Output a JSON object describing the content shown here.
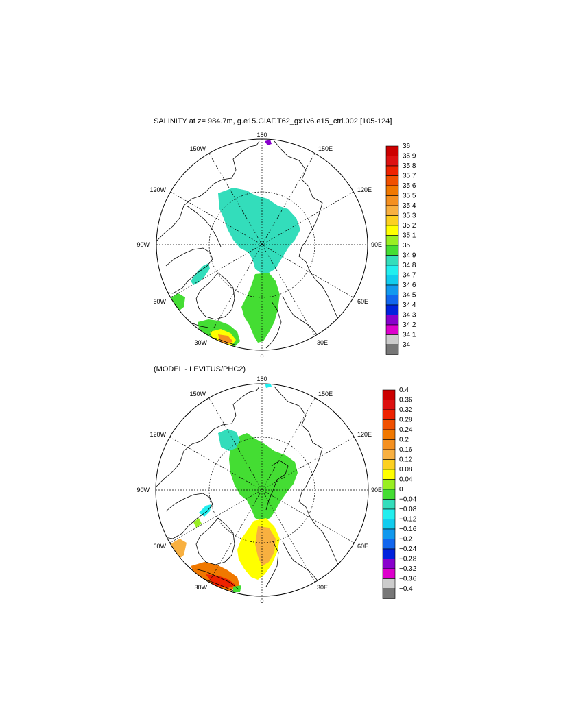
{
  "panels": [
    {
      "title": "SALINITY at z= 984.7m, g.e15.GIAF.T62_gx1v6.e15_ctrl.002 [105-124]",
      "lon_labels": {
        "top": "180",
        "bottom": "0",
        "left": "90W",
        "right": "90E",
        "ul1": "150W",
        "ur1": "150E",
        "ul2": "120W",
        "ur2": "120E",
        "ll1": "60W",
        "lr1": "60E",
        "ll2": "30W",
        "lr2": "30E"
      },
      "colorbar": {
        "labels": [
          "36",
          "35.9",
          "35.8",
          "35.7",
          "35.6",
          "35.5",
          "35.4",
          "35.3",
          "35.2",
          "35.1",
          "35",
          "34.9",
          "34.8",
          "34.7",
          "34.6",
          "34.5",
          "34.4",
          "34.3",
          "34.2",
          "34.1",
          "34"
        ],
        "colors": [
          "#cc0000",
          "#dd1111",
          "#ee2200",
          "#f05000",
          "#f07800",
          "#f49020",
          "#f8b040",
          "#fcd020",
          "#ffff00",
          "#99ee22",
          "#44dd33",
          "#33ddbb",
          "#22eeee",
          "#11ccee",
          "#1199ee",
          "#1166ee",
          "#0022dd",
          "#8800cc",
          "#dd00cc",
          "#cccccc",
          "#777777"
        ]
      }
    },
    {
      "title": "(MODEL - LEVITUS/PHC2)",
      "lon_labels": {
        "top": "180",
        "bottom": "0",
        "left": "90W",
        "right": "90E",
        "ul1": "150W",
        "ur1": "150E",
        "ul2": "120W",
        "ur2": "120E",
        "ll1": "60W",
        "lr1": "60E",
        "ll2": "30W",
        "lr2": "30E"
      },
      "colorbar": {
        "labels": [
          "0.4",
          "0.36",
          "0.32",
          "0.28",
          "0.24",
          "0.2",
          "0.16",
          "0.12",
          "0.08",
          "0.04",
          "0",
          "−0.04",
          "−0.08",
          "−0.12",
          "−0.16",
          "−0.2",
          "−0.24",
          "−0.28",
          "−0.32",
          "−0.36",
          "−0.4"
        ],
        "colors": [
          "#cc0000",
          "#dd1111",
          "#ee2200",
          "#f05000",
          "#f07800",
          "#f49020",
          "#f8b040",
          "#fcd020",
          "#ffff00",
          "#99ee22",
          "#44dd33",
          "#33ddbb",
          "#22eeee",
          "#11ccee",
          "#1199ee",
          "#1166ee",
          "#0022dd",
          "#8800cc",
          "#dd00cc",
          "#cccccc",
          "#777777"
        ]
      }
    }
  ]
}
